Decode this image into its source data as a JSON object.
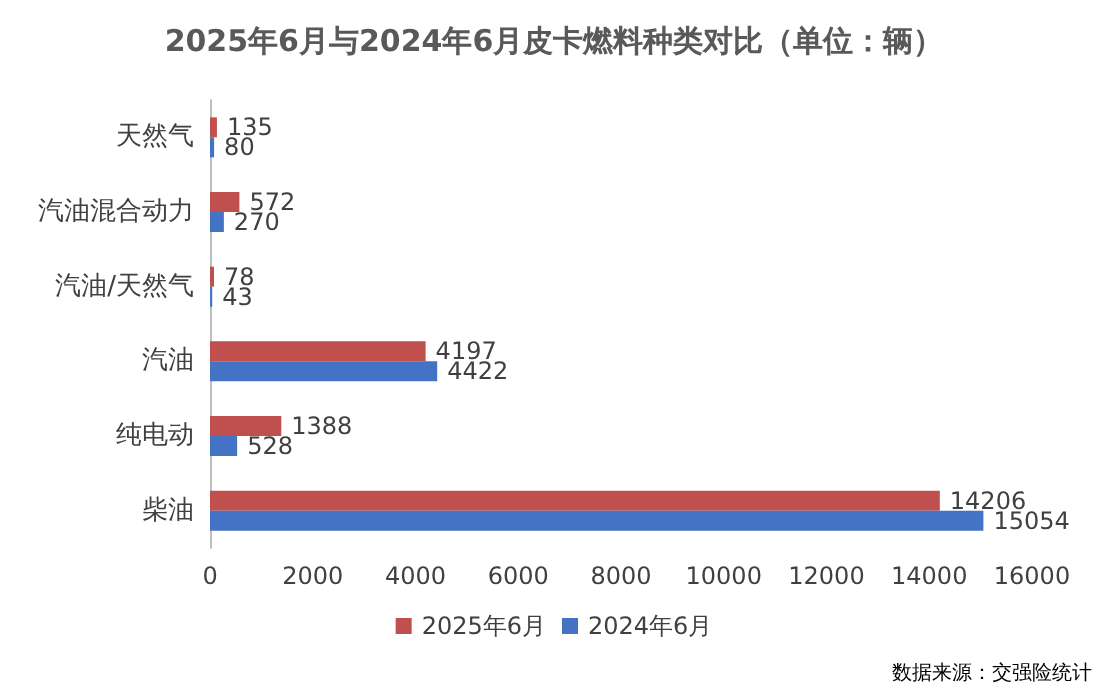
{
  "chart_data": {
    "type": "bar",
    "orientation": "horizontal",
    "title": "2025年6月与2024年6月皮卡燃料种类对比（单位：辆）",
    "categories": [
      "天然气",
      "汽油混合动力",
      "汽油/天然气",
      "汽油",
      "纯电动",
      "柴油"
    ],
    "series": [
      {
        "name": "2025年6月",
        "color": "#c0504d",
        "values": [
          135,
          572,
          78,
          4197,
          1388,
          14206
        ]
      },
      {
        "name": "2024年6月",
        "color": "#4472c4",
        "values": [
          80,
          270,
          43,
          4422,
          528,
          15054
        ]
      }
    ],
    "xlim": [
      0,
      16000
    ],
    "xticks": [
      0,
      2000,
      4000,
      6000,
      8000,
      10000,
      12000,
      14000,
      16000
    ],
    "grid": false,
    "legend": "bottom",
    "data_labels": true,
    "annotations": [
      "数据来源：交强险统计"
    ]
  }
}
